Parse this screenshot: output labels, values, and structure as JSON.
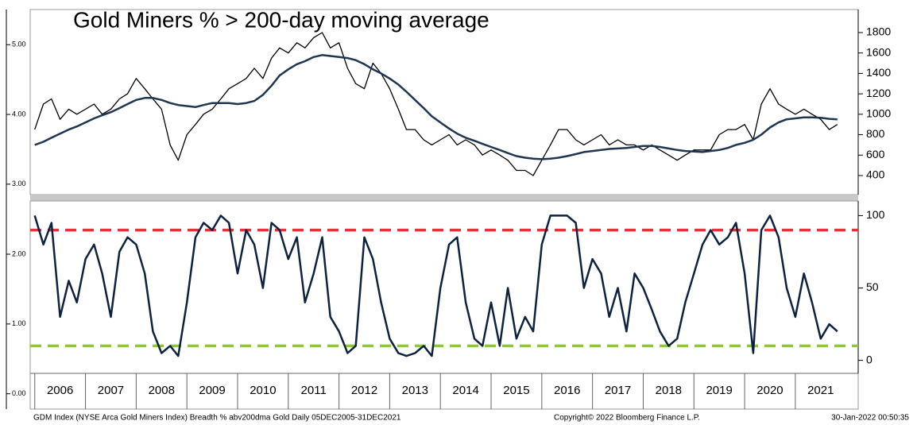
{
  "chart_data": [
    {
      "type": "line",
      "title": "Gold Miners % > 200-day moving average",
      "x": [
        2006.0,
        2006.17,
        2006.33,
        2006.5,
        2006.67,
        2006.83,
        2007.0,
        2007.17,
        2007.33,
        2007.5,
        2007.67,
        2007.83,
        2008.0,
        2008.17,
        2008.33,
        2008.5,
        2008.67,
        2008.83,
        2009.0,
        2009.17,
        2009.33,
        2009.5,
        2009.67,
        2009.83,
        2010.0,
        2010.17,
        2010.33,
        2010.5,
        2010.67,
        2010.83,
        2011.0,
        2011.17,
        2011.33,
        2011.5,
        2011.67,
        2011.83,
        2012.0,
        2012.17,
        2012.33,
        2012.5,
        2012.67,
        2012.83,
        2013.0,
        2013.17,
        2013.33,
        2013.5,
        2013.67,
        2013.83,
        2014.0,
        2014.17,
        2014.33,
        2014.5,
        2014.67,
        2014.83,
        2015.0,
        2015.17,
        2015.33,
        2015.5,
        2015.67,
        2015.83,
        2016.0,
        2016.17,
        2016.33,
        2016.5,
        2016.67,
        2016.83,
        2017.0,
        2017.17,
        2017.33,
        2017.5,
        2017.67,
        2017.83,
        2018.0,
        2018.17,
        2018.33,
        2018.5,
        2018.67,
        2018.83,
        2019.0,
        2019.17,
        2019.33,
        2019.5,
        2019.67,
        2019.83,
        2020.0,
        2020.17,
        2020.33,
        2020.5,
        2020.67,
        2020.83,
        2021.0,
        2021.17,
        2021.33,
        2021.5,
        2021.67,
        2021.83
      ],
      "series": [
        {
          "color": "#000000",
          "values": [
            850,
            1100,
            1150,
            950,
            1050,
            1000,
            1050,
            1100,
            1000,
            1050,
            1150,
            1200,
            1350,
            1250,
            1150,
            1050,
            700,
            550,
            800,
            900,
            1000,
            1050,
            1150,
            1250,
            1300,
            1350,
            1450,
            1350,
            1550,
            1650,
            1600,
            1700,
            1650,
            1750,
            1800,
            1650,
            1700,
            1450,
            1300,
            1250,
            1500,
            1400,
            1250,
            1050,
            850,
            850,
            750,
            700,
            750,
            800,
            700,
            750,
            700,
            600,
            650,
            600,
            550,
            450,
            450,
            400,
            550,
            700,
            850,
            850,
            750,
            700,
            750,
            800,
            700,
            750,
            700,
            700,
            650,
            700,
            650,
            600,
            550,
            600,
            650,
            650,
            650,
            800,
            850,
            850,
            900,
            750,
            1100,
            1250,
            1100,
            1050,
            1000,
            1050,
            1000,
            950,
            850,
            900
          ]
        },
        {
          "color": "#1f3550",
          "values": [
            700,
            730,
            770,
            810,
            850,
            880,
            920,
            960,
            990,
            1020,
            1060,
            1100,
            1140,
            1160,
            1160,
            1140,
            1110,
            1090,
            1080,
            1070,
            1090,
            1110,
            1110,
            1110,
            1100,
            1110,
            1130,
            1190,
            1280,
            1380,
            1440,
            1490,
            1520,
            1560,
            1580,
            1570,
            1560,
            1550,
            1530,
            1490,
            1440,
            1400,
            1350,
            1290,
            1220,
            1140,
            1060,
            980,
            920,
            860,
            810,
            770,
            740,
            710,
            680,
            650,
            620,
            590,
            575,
            565,
            560,
            565,
            575,
            590,
            610,
            630,
            640,
            650,
            660,
            665,
            670,
            680,
            690,
            690,
            680,
            665,
            650,
            640,
            635,
            630,
            640,
            650,
            670,
            700,
            720,
            750,
            800,
            870,
            920,
            950,
            960,
            970,
            970,
            965,
            955,
            950
          ]
        }
      ],
      "xlim": [
        2005.91,
        2022.24
      ],
      "ylim": [
        213,
        2002
      ],
      "yticks": [
        400,
        600,
        800,
        1000,
        1200,
        1400,
        1600,
        1800
      ],
      "y2lim": [
        2.85,
        5.47
      ],
      "y2ticks": [
        {
          "value": 3,
          "label": "3.00"
        },
        {
          "value": 4,
          "label": "4.00"
        },
        {
          "value": 5,
          "label": "5.00"
        }
      ]
    },
    {
      "type": "line",
      "x": [
        2006.0,
        2006.17,
        2006.33,
        2006.5,
        2006.67,
        2006.83,
        2007.0,
        2007.17,
        2007.33,
        2007.5,
        2007.67,
        2007.83,
        2008.0,
        2008.17,
        2008.33,
        2008.5,
        2008.67,
        2008.83,
        2009.0,
        2009.17,
        2009.33,
        2009.5,
        2009.67,
        2009.83,
        2010.0,
        2010.17,
        2010.33,
        2010.5,
        2010.67,
        2010.83,
        2011.0,
        2011.17,
        2011.33,
        2011.5,
        2011.67,
        2011.83,
        2012.0,
        2012.17,
        2012.33,
        2012.5,
        2012.67,
        2012.83,
        2013.0,
        2013.17,
        2013.33,
        2013.5,
        2013.67,
        2013.83,
        2014.0,
        2014.17,
        2014.33,
        2014.5,
        2014.67,
        2014.83,
        2015.0,
        2015.17,
        2015.33,
        2015.5,
        2015.67,
        2015.83,
        2016.0,
        2016.17,
        2016.33,
        2016.5,
        2016.67,
        2016.83,
        2017.0,
        2017.17,
        2017.33,
        2017.5,
        2017.67,
        2017.83,
        2018.0,
        2018.17,
        2018.33,
        2018.5,
        2018.67,
        2018.83,
        2019.0,
        2019.17,
        2019.33,
        2019.5,
        2019.67,
        2019.83,
        2020.0,
        2020.17,
        2020.33,
        2020.5,
        2020.67,
        2020.83,
        2021.0,
        2021.17,
        2021.33,
        2021.5,
        2021.67,
        2021.83
      ],
      "series": [
        {
          "color": "#0d2240",
          "values": [
            100,
            80,
            95,
            30,
            55,
            40,
            70,
            80,
            60,
            30,
            75,
            85,
            80,
            60,
            20,
            5,
            10,
            3,
            40,
            85,
            95,
            90,
            100,
            95,
            60,
            90,
            80,
            50,
            95,
            90,
            70,
            85,
            40,
            60,
            85,
            30,
            20,
            5,
            10,
            85,
            70,
            40,
            15,
            5,
            3,
            5,
            10,
            3,
            50,
            80,
            85,
            40,
            15,
            10,
            40,
            10,
            50,
            15,
            30,
            20,
            80,
            100,
            100,
            100,
            95,
            50,
            70,
            60,
            30,
            50,
            20,
            60,
            50,
            35,
            20,
            10,
            15,
            40,
            60,
            80,
            90,
            80,
            85,
            95,
            60,
            5,
            90,
            100,
            85,
            50,
            30,
            60,
            40,
            15,
            25,
            20
          ]
        }
      ],
      "reference_lines": [
        {
          "value": 90,
          "color": "#e8303a"
        },
        {
          "value": 10,
          "color": "#8dc63f"
        }
      ],
      "xlim": [
        2005.91,
        2022.24
      ],
      "xticks": [
        2006,
        2007,
        2008,
        2009,
        2010,
        2011,
        2012,
        2013,
        2014,
        2015,
        2016,
        2017,
        2018,
        2019,
        2020,
        2021
      ],
      "ylim": [
        -9,
        109
      ],
      "yticks": [
        0,
        50,
        100
      ],
      "y2lim": [
        -0.22,
        2.74
      ],
      "y2ticks": [
        {
          "value": 0,
          "label": "0.00"
        },
        {
          "value": 1,
          "label": "1.00"
        },
        {
          "value": 2,
          "label": "2.00"
        }
      ]
    }
  ],
  "footer": {
    "source": "GDM Index (NYSE Arca Gold Miners Index) Breadth % abv200dma Gold  Daily 05DEC2005-31DEC2021",
    "copyright": "Copyright© 2022 Bloomberg Finance L.P.",
    "timestamp": "30-Jan-2022 00:50:35"
  }
}
